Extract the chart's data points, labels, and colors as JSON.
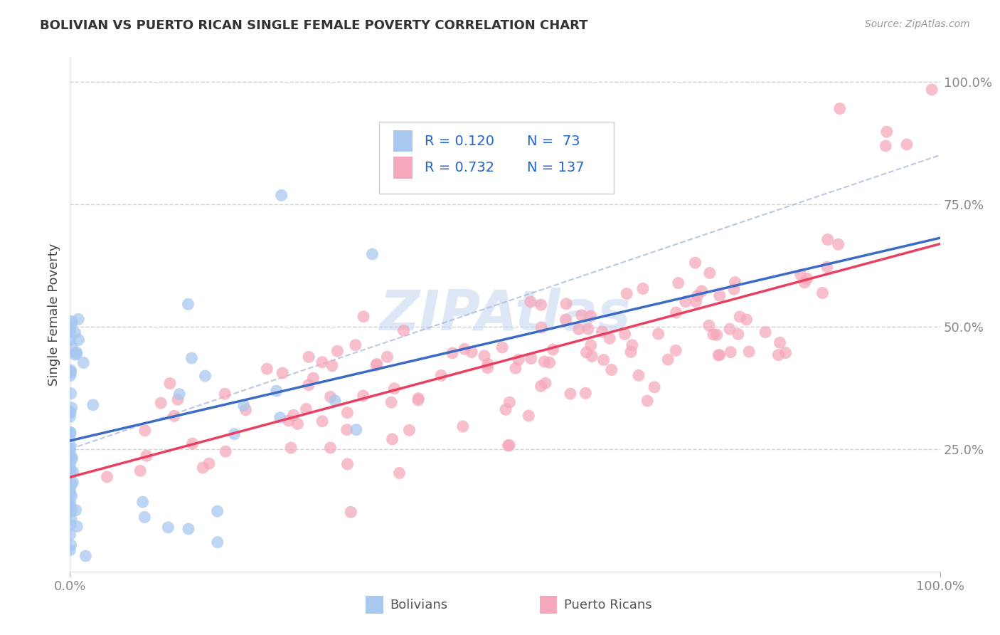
{
  "title": "BOLIVIAN VS PUERTO RICAN SINGLE FEMALE POVERTY CORRELATION CHART",
  "source": "Source: ZipAtlas.com",
  "ylabel": "Single Female Poverty",
  "bolivian_R": 0.12,
  "bolivian_N": 73,
  "puerto_rican_R": 0.732,
  "puerto_rican_N": 137,
  "bolivian_color": "#A8C8F0",
  "bolivian_line_color": "#3B6BC4",
  "bolivian_line_dash": true,
  "puerto_rican_color": "#F5A8BB",
  "puerto_rican_line_color": "#E84060",
  "tick_label_color": "#3B7FD4",
  "axis_label_color": "#444444",
  "background_color": "#FFFFFF",
  "watermark": "ZIPAtlas",
  "watermark_color": "#C8D8F0",
  "legend_r_color": "#2266CC",
  "grid_color": "#CCCCCC",
  "xtick_color": "#888888"
}
